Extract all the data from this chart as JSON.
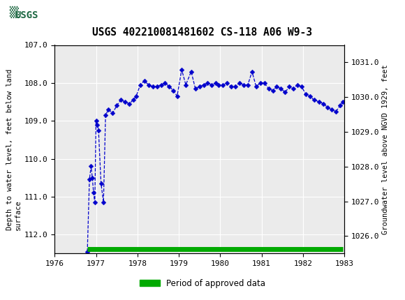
{
  "title": "USGS 402210081481602 CS-118 A06 W9-3",
  "ylabel_left": "Depth to water level, feet below land\nsurface",
  "ylabel_right": "Groundwater level above NGVD 1929, feet",
  "xlim": [
    1976.0,
    1983.0
  ],
  "ylim_left_top": 107.0,
  "ylim_left_bottom": 112.5,
  "ylim_right_top": 1031.5,
  "ylim_right_bottom": 1025.5,
  "xticks": [
    1976,
    1977,
    1978,
    1979,
    1980,
    1981,
    1982,
    1983
  ],
  "yticks_left": [
    107.0,
    108.0,
    109.0,
    110.0,
    111.0,
    112.0
  ],
  "yticks_right": [
    1026.0,
    1027.0,
    1028.0,
    1029.0,
    1030.0,
    1031.0
  ],
  "header_color": "#1a6640",
  "line_color": "#0000cc",
  "marker_color": "#0000cc",
  "approved_color": "#00aa00",
  "background_color": "#ffffff",
  "plot_bg_color": "#ebebeb",
  "grid_color": "#ffffff",
  "x_data": [
    1976.79,
    1976.84,
    1976.88,
    1976.91,
    1976.94,
    1976.97,
    1977.0,
    1977.03,
    1977.06,
    1977.12,
    1977.18,
    1977.23,
    1977.3,
    1977.4,
    1977.5,
    1977.6,
    1977.7,
    1977.8,
    1977.9,
    1977.97,
    1978.07,
    1978.17,
    1978.27,
    1978.37,
    1978.47,
    1978.57,
    1978.67,
    1978.77,
    1978.87,
    1978.96,
    1979.07,
    1979.17,
    1979.3,
    1979.4,
    1979.5,
    1979.6,
    1979.7,
    1979.8,
    1979.9,
    1979.97,
    1980.07,
    1980.17,
    1980.27,
    1980.37,
    1980.47,
    1980.57,
    1980.67,
    1980.77,
    1980.87,
    1980.97,
    1981.07,
    1981.17,
    1981.27,
    1981.37,
    1981.47,
    1981.57,
    1981.67,
    1981.77,
    1981.87,
    1981.97,
    1982.07,
    1982.17,
    1982.27,
    1982.4,
    1982.5,
    1982.6,
    1982.7,
    1982.8,
    1982.9,
    1982.97
  ],
  "y_data": [
    112.45,
    110.55,
    110.2,
    110.5,
    110.9,
    111.15,
    109.0,
    109.1,
    109.25,
    110.65,
    111.15,
    108.85,
    108.7,
    108.8,
    108.6,
    108.45,
    108.5,
    108.55,
    108.45,
    108.35,
    108.05,
    107.95,
    108.05,
    108.1,
    108.1,
    108.05,
    108.0,
    108.1,
    108.2,
    108.35,
    107.65,
    108.05,
    107.7,
    108.15,
    108.1,
    108.05,
    108.0,
    108.05,
    108.0,
    108.05,
    108.05,
    108.0,
    108.1,
    108.1,
    108.0,
    108.05,
    108.05,
    107.7,
    108.1,
    108.0,
    108.0,
    108.15,
    108.2,
    108.1,
    108.15,
    108.25,
    108.1,
    108.15,
    108.05,
    108.1,
    108.3,
    108.35,
    108.45,
    108.5,
    108.55,
    108.65,
    108.7,
    108.75,
    108.6,
    108.5
  ],
  "approved_y_val": 112.38,
  "approved_x_start": 1976.79,
  "approved_x_end": 1982.97,
  "legend_label": "Period of approved data"
}
